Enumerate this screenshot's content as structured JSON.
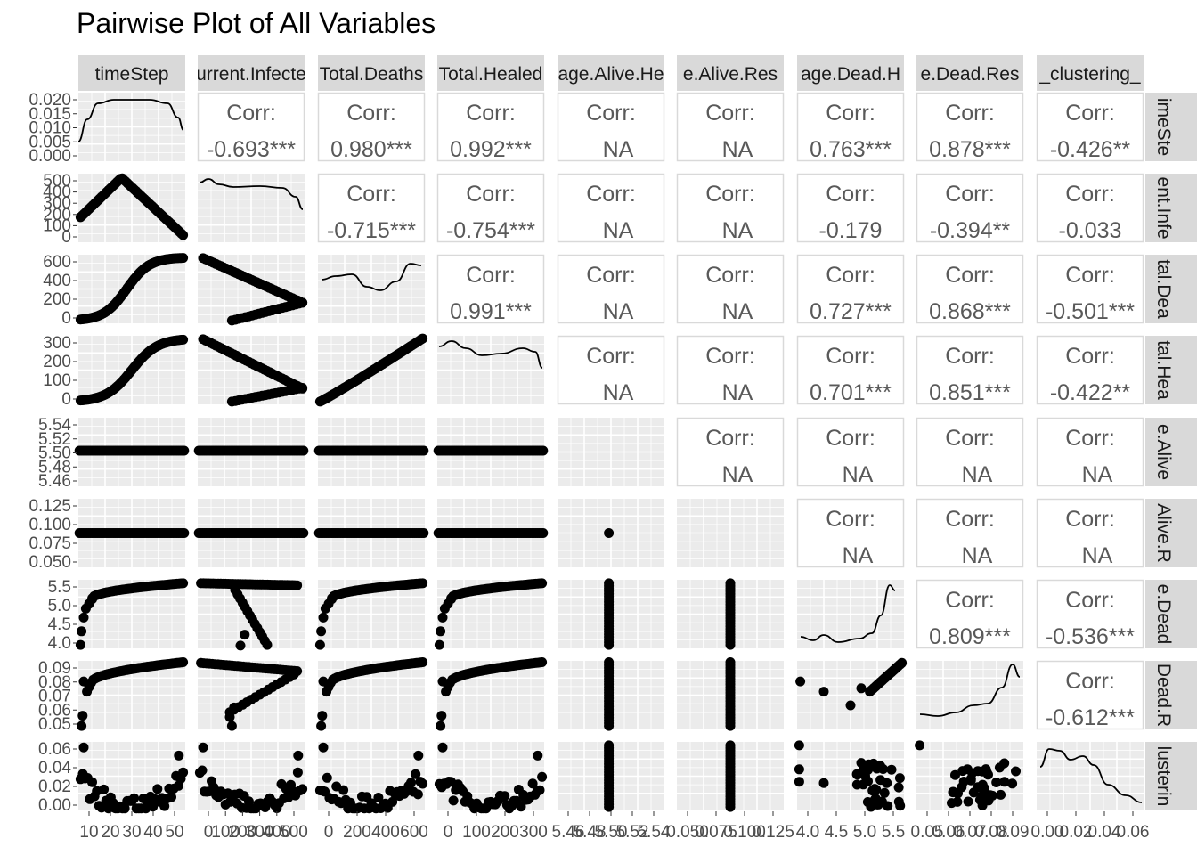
{
  "title": "Pairwise Plot of All Variables",
  "colors": {
    "panel_bg": "#ebebeb",
    "grid": "#ffffff",
    "strip_bg": "#d9d9d9",
    "point": "#000000",
    "corr_text": "#595959",
    "tick_text": "#4d4d4d"
  },
  "chart_data": {
    "type": "scatter",
    "title": "Pairwise Plot of All Variables",
    "variables": [
      "timeStep",
      "urrent.Infecte",
      "Total.Deaths",
      "Total.Healed",
      "age.Alive.He",
      "e.Alive.Res",
      "age.Dead.H",
      "e.Dead.Res",
      "_clustering_"
    ],
    "row_strips": [
      "imeSte",
      "ent.Infe",
      "tal.Dea",
      "tal.Hea",
      "e.Alive",
      "Alive.R",
      "e.Dead",
      "Dead.R",
      "lusterin"
    ],
    "x_tick_labels": [
      [
        "10",
        "20",
        "30",
        "40",
        "50"
      ],
      [
        "0",
        "100",
        "200",
        "300",
        "400",
        "500"
      ],
      [
        "0",
        "200",
        "400",
        "600"
      ],
      [
        "0",
        "100",
        "200",
        "300"
      ],
      [
        "5.46",
        "5.48",
        "5.50",
        "5.52",
        "5.54"
      ],
      [
        "0.050",
        "0.075",
        "0.100",
        "0.125"
      ],
      [
        "4.0",
        "4.5",
        "5.0",
        "5.5"
      ],
      [
        "0.05",
        "0.06",
        "0.07",
        "0.08",
        "0.09"
      ],
      [
        "0.00",
        "0.02",
        "0.04",
        "0.06"
      ]
    ],
    "y_tick_labels": [
      [
        "0.020",
        "0.015",
        "0.010",
        "0.005",
        "0.000"
      ],
      [
        "500",
        "400",
        "300",
        "200",
        "100",
        "0"
      ],
      [
        "600",
        "400",
        "200",
        "0"
      ],
      [
        "300",
        "200",
        "100",
        "0"
      ],
      [
        "5.54",
        "5.52",
        "5.50",
        "5.48",
        "5.46"
      ],
      [
        "0.125",
        "0.100",
        "0.075",
        "0.050"
      ],
      [
        "5.5",
        "5.0",
        "4.5",
        "4.0"
      ],
      [
        "0.09",
        "0.08",
        "0.07",
        "0.06",
        "0.05"
      ],
      [
        "0.06",
        "0.04",
        "0.02",
        "0.00"
      ]
    ],
    "correlations": [
      {
        "row": 1,
        "col": 2,
        "label": "Corr:",
        "value": "-0.693***"
      },
      {
        "row": 1,
        "col": 3,
        "label": "Corr:",
        "value": "0.980***"
      },
      {
        "row": 1,
        "col": 4,
        "label": "Corr:",
        "value": "0.992***"
      },
      {
        "row": 1,
        "col": 5,
        "label": "Corr:",
        "value": "NA"
      },
      {
        "row": 1,
        "col": 6,
        "label": "Corr:",
        "value": "NA"
      },
      {
        "row": 1,
        "col": 7,
        "label": "Corr:",
        "value": "0.763***"
      },
      {
        "row": 1,
        "col": 8,
        "label": "Corr:",
        "value": "0.878***"
      },
      {
        "row": 1,
        "col": 9,
        "label": "Corr:",
        "value": "-0.426**"
      },
      {
        "row": 2,
        "col": 3,
        "label": "Corr:",
        "value": "-0.715***"
      },
      {
        "row": 2,
        "col": 4,
        "label": "Corr:",
        "value": "-0.754***"
      },
      {
        "row": 2,
        "col": 5,
        "label": "Corr:",
        "value": "NA"
      },
      {
        "row": 2,
        "col": 6,
        "label": "Corr:",
        "value": "NA"
      },
      {
        "row": 2,
        "col": 7,
        "label": "Corr:",
        "value": "-0.179"
      },
      {
        "row": 2,
        "col": 8,
        "label": "Corr:",
        "value": "-0.394**"
      },
      {
        "row": 2,
        "col": 9,
        "label": "Corr:",
        "value": "-0.033"
      },
      {
        "row": 3,
        "col": 4,
        "label": "Corr:",
        "value": "0.991***"
      },
      {
        "row": 3,
        "col": 5,
        "label": "Corr:",
        "value": "NA"
      },
      {
        "row": 3,
        "col": 6,
        "label": "Corr:",
        "value": "NA"
      },
      {
        "row": 3,
        "col": 7,
        "label": "Corr:",
        "value": "0.727***"
      },
      {
        "row": 3,
        "col": 8,
        "label": "Corr:",
        "value": "0.868***"
      },
      {
        "row": 3,
        "col": 9,
        "label": "Corr:",
        "value": "-0.501***"
      },
      {
        "row": 4,
        "col": 5,
        "label": "Corr:",
        "value": "NA"
      },
      {
        "row": 4,
        "col": 6,
        "label": "Corr:",
        "value": "NA"
      },
      {
        "row": 4,
        "col": 7,
        "label": "Corr:",
        "value": "0.701***"
      },
      {
        "row": 4,
        "col": 8,
        "label": "Corr:",
        "value": "0.851***"
      },
      {
        "row": 4,
        "col": 9,
        "label": "Corr:",
        "value": "-0.422**"
      },
      {
        "row": 5,
        "col": 6,
        "label": "Corr:",
        "value": "NA"
      },
      {
        "row": 5,
        "col": 7,
        "label": "Corr:",
        "value": "NA"
      },
      {
        "row": 5,
        "col": 8,
        "label": "Corr:",
        "value": "NA"
      },
      {
        "row": 5,
        "col": 9,
        "label": "Corr:",
        "value": "NA"
      },
      {
        "row": 6,
        "col": 7,
        "label": "Corr:",
        "value": "NA"
      },
      {
        "row": 6,
        "col": 8,
        "label": "Corr:",
        "value": "NA"
      },
      {
        "row": 6,
        "col": 9,
        "label": "Corr:",
        "value": "NA"
      },
      {
        "row": 7,
        "col": 8,
        "label": "Corr:",
        "value": "0.809***"
      },
      {
        "row": 7,
        "col": 9,
        "label": "Corr:",
        "value": "-0.536***"
      },
      {
        "row": 8,
        "col": 9,
        "label": "Corr:",
        "value": "-0.612***"
      }
    ]
  }
}
